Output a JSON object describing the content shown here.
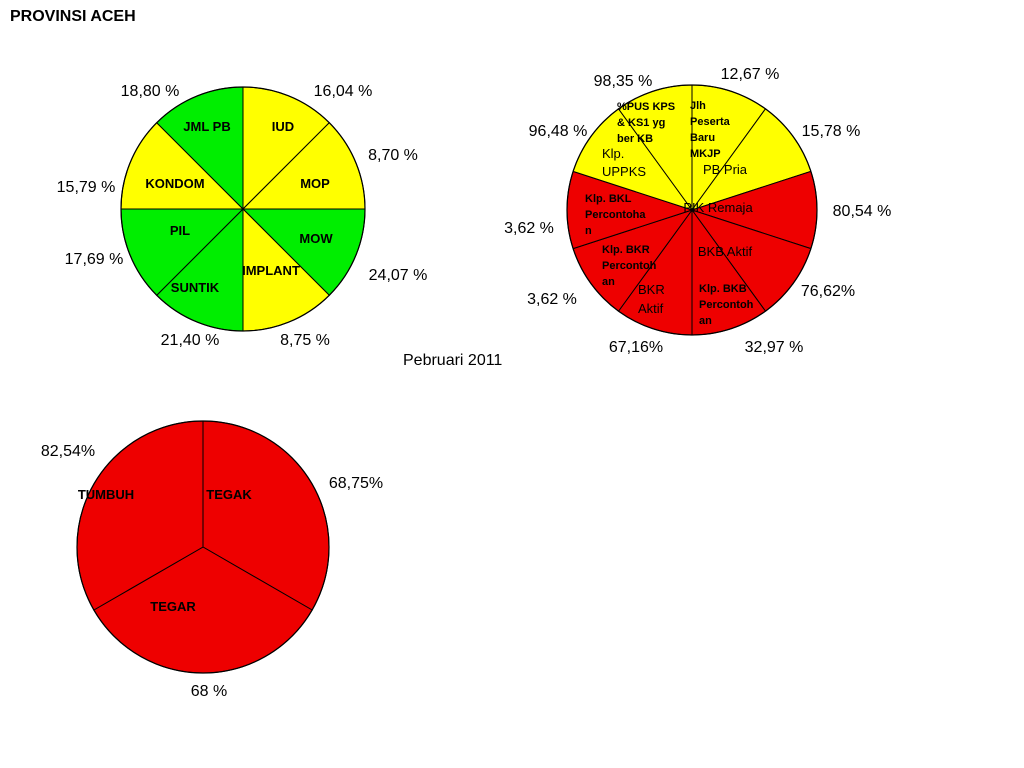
{
  "page": {
    "title": "PROVINSI ACEH",
    "period": "Pebruari  2011"
  },
  "colors": {
    "yellow": "#ffff00",
    "green": "#00ee00",
    "red": "#ee0000",
    "outline": "#000000"
  },
  "chart_data": [
    {
      "type": "pie",
      "slices": [
        {
          "label": "IUD",
          "value": 16.04,
          "display": "16,04 %",
          "color": "yellow"
        },
        {
          "label": "MOP",
          "value": 8.7,
          "display": "8,70 %",
          "color": "yellow"
        },
        {
          "label": "MOW",
          "value": 24.07,
          "display": "24,07 %",
          "color": "green"
        },
        {
          "label": "IMPLANT",
          "value": 8.75,
          "display": "8,75 %",
          "color": "yellow"
        },
        {
          "label": "SUNTIK",
          "value": 21.4,
          "display": "21,40 %",
          "color": "green"
        },
        {
          "label": "PIL",
          "value": 17.69,
          "display": "17,69 %",
          "color": "green"
        },
        {
          "label": "KONDOM",
          "value": 15.79,
          "display": "15,79 %",
          "color": "yellow"
        },
        {
          "label": "JML PB",
          "value": 18.8,
          "display": "18,80 %",
          "color": "green"
        }
      ]
    },
    {
      "type": "pie",
      "slices": [
        {
          "label": "Jlh Peserta Baru MKJP",
          "value": 12.67,
          "display": "12,67 %",
          "color": "yellow"
        },
        {
          "label": "PB Pria",
          "value": 15.78,
          "display": "15,78 %",
          "color": "yellow"
        },
        {
          "label": "PIK Remaja",
          "value": 80.54,
          "display": "80,54 %",
          "color": "red"
        },
        {
          "label": "BKB Aktif",
          "value": 76.62,
          "display": "76,62%",
          "color": "red"
        },
        {
          "label": "Klp. BKB Percontohan",
          "value": 32.97,
          "display": "32,97 %",
          "color": "red"
        },
        {
          "label": "BKR Aktif",
          "value": 67.16,
          "display": "67,16%",
          "color": "red"
        },
        {
          "label": "Klp. BKR Percontohan",
          "value": 3.62,
          "display": "3,62 %",
          "color": "red"
        },
        {
          "label": "Klp. BKL Percontohan",
          "value": 3.62,
          "display": "3,62 %",
          "color": "red"
        },
        {
          "label": "Klp. UPPKS",
          "value": 96.48,
          "display": "96,48 %",
          "color": "yellow"
        },
        {
          "label": "%PUS KPS & KS1 yg ber KB",
          "value": 98.35,
          "display": "98,35 %",
          "color": "yellow"
        }
      ]
    },
    {
      "type": "pie",
      "slices": [
        {
          "label": "TEGAK",
          "value": 68.75,
          "display": "68,75%",
          "color": "red"
        },
        {
          "label": "TEGAR",
          "value": 68,
          "display": "68 %",
          "color": "red"
        },
        {
          "label": "TUMBUH",
          "value": 82.54,
          "display": "82,54%",
          "color": "red"
        }
      ]
    }
  ]
}
